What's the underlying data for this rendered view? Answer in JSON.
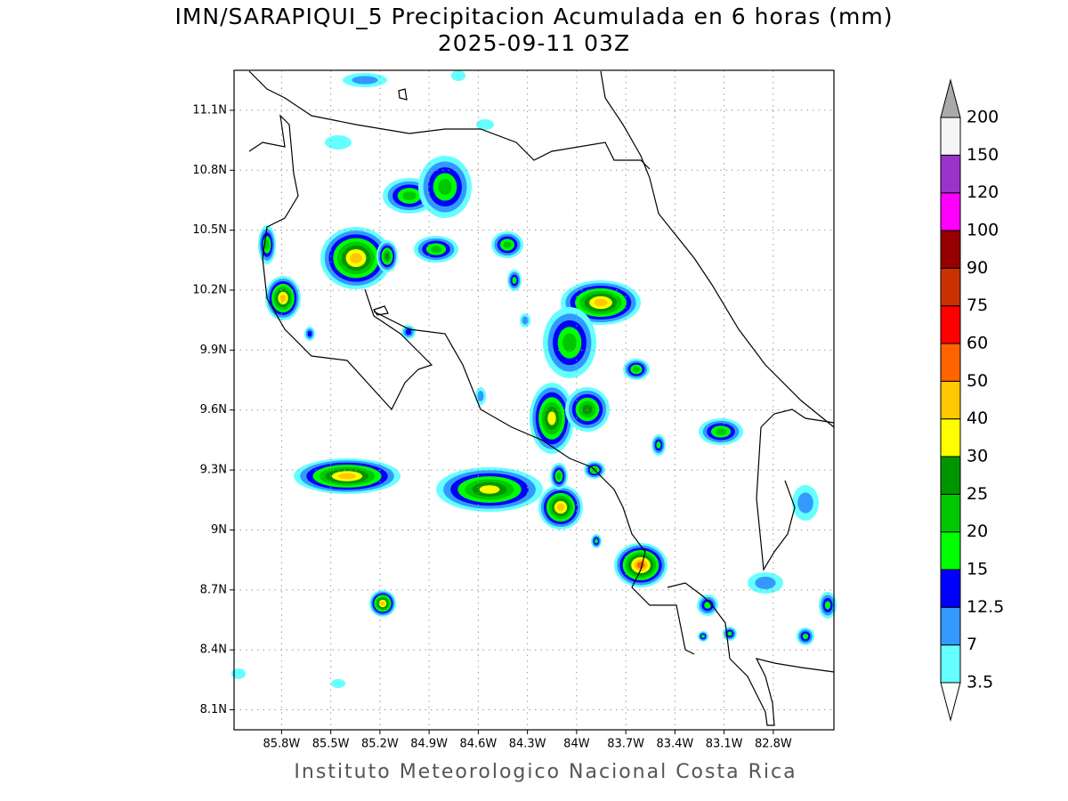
{
  "title": "IMN/SARAPIQUI_5 Precipitacion Acumulada en 6 horas (mm)",
  "subtitle": "2025-09-11 03Z",
  "map": {
    "lat_lim": [
      8.0,
      11.3
    ],
    "lon_lim": [
      -86.09,
      -82.43
    ],
    "lat_ticks": [
      {
        "value": 8.1,
        "label": "8.1N"
      },
      {
        "value": 8.4,
        "label": "8.4N"
      },
      {
        "value": 8.7,
        "label": "8.7N"
      },
      {
        "value": 9.0,
        "label": "9N"
      },
      {
        "value": 9.3,
        "label": "9.3N"
      },
      {
        "value": 9.6,
        "label": "9.6N"
      },
      {
        "value": 9.9,
        "label": "9.9N"
      },
      {
        "value": 10.2,
        "label": "10.2N"
      },
      {
        "value": 10.5,
        "label": "10.5N"
      },
      {
        "value": 10.8,
        "label": "10.8N"
      },
      {
        "value": 11.1,
        "label": "11.1N"
      }
    ],
    "lon_ticks": [
      {
        "value": -85.8,
        "label": "85.8W"
      },
      {
        "value": -85.5,
        "label": "85.5W"
      },
      {
        "value": -85.2,
        "label": "85.2W"
      },
      {
        "value": -84.9,
        "label": "84.9W"
      },
      {
        "value": -84.6,
        "label": "84.6W"
      },
      {
        "value": -84.3,
        "label": "84.3W"
      },
      {
        "value": -84.0,
        "label": "84W"
      },
      {
        "value": -83.7,
        "label": "83.7W"
      },
      {
        "value": -83.4,
        "label": "83.4W"
      },
      {
        "value": -83.1,
        "label": "83.1W"
      },
      {
        "value": -82.8,
        "label": "82.8W"
      }
    ],
    "grid": true
  },
  "colorbar": {
    "levels": [
      3.5,
      7,
      12.5,
      15,
      20,
      25,
      30,
      40,
      50,
      60,
      75,
      90,
      100,
      120,
      150,
      200
    ],
    "colors": [
      "#66ffff",
      "#3399ff",
      "#0000ff",
      "#00ff00",
      "#00c800",
      "#009600",
      "#ffff00",
      "#ffc800",
      "#ff6400",
      "#ff0000",
      "#c83200",
      "#960000",
      "#ff00ff",
      "#9933cc",
      "#f5f5f5"
    ],
    "below_color": "#ffffff",
    "above_color": "#aaaaaa"
  },
  "footer": "Instituto Meteorologico Nacional Costa Rica"
}
